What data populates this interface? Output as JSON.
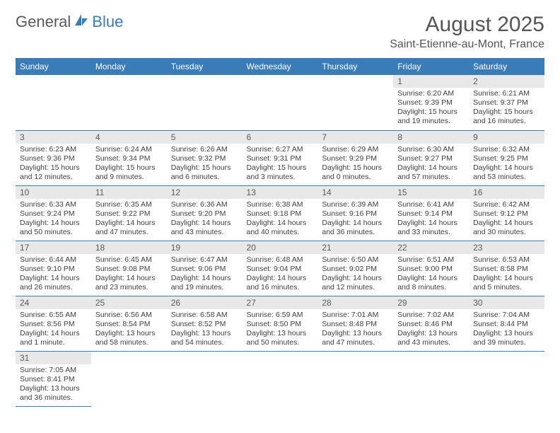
{
  "logo": {
    "general": "General",
    "blue": "Blue"
  },
  "header": {
    "month_title": "August 2025",
    "location": "Saint-Etienne-au-Mont, France"
  },
  "colors": {
    "header_bg": "#3a7cb8",
    "header_text": "#ffffff",
    "daynum_bg": "#e8e8e8",
    "text": "#404040",
    "logo_gray": "#5a5a5a",
    "logo_blue": "#3a7cb8",
    "border": "#3a7cb8",
    "page_bg": "#ffffff"
  },
  "daynames": [
    "Sunday",
    "Monday",
    "Tuesday",
    "Wednesday",
    "Thursday",
    "Friday",
    "Saturday"
  ],
  "weeks": [
    [
      null,
      null,
      null,
      null,
      null,
      {
        "n": "1",
        "sr": "Sunrise: 6:20 AM",
        "ss": "Sunset: 9:39 PM",
        "dl": "Daylight: 15 hours and 19 minutes."
      },
      {
        "n": "2",
        "sr": "Sunrise: 6:21 AM",
        "ss": "Sunset: 9:37 PM",
        "dl": "Daylight: 15 hours and 16 minutes."
      }
    ],
    [
      {
        "n": "3",
        "sr": "Sunrise: 6:23 AM",
        "ss": "Sunset: 9:36 PM",
        "dl": "Daylight: 15 hours and 12 minutes."
      },
      {
        "n": "4",
        "sr": "Sunrise: 6:24 AM",
        "ss": "Sunset: 9:34 PM",
        "dl": "Daylight: 15 hours and 9 minutes."
      },
      {
        "n": "5",
        "sr": "Sunrise: 6:26 AM",
        "ss": "Sunset: 9:32 PM",
        "dl": "Daylight: 15 hours and 6 minutes."
      },
      {
        "n": "6",
        "sr": "Sunrise: 6:27 AM",
        "ss": "Sunset: 9:31 PM",
        "dl": "Daylight: 15 hours and 3 minutes."
      },
      {
        "n": "7",
        "sr": "Sunrise: 6:29 AM",
        "ss": "Sunset: 9:29 PM",
        "dl": "Daylight: 15 hours and 0 minutes."
      },
      {
        "n": "8",
        "sr": "Sunrise: 6:30 AM",
        "ss": "Sunset: 9:27 PM",
        "dl": "Daylight: 14 hours and 57 minutes."
      },
      {
        "n": "9",
        "sr": "Sunrise: 6:32 AM",
        "ss": "Sunset: 9:25 PM",
        "dl": "Daylight: 14 hours and 53 minutes."
      }
    ],
    [
      {
        "n": "10",
        "sr": "Sunrise: 6:33 AM",
        "ss": "Sunset: 9:24 PM",
        "dl": "Daylight: 14 hours and 50 minutes."
      },
      {
        "n": "11",
        "sr": "Sunrise: 6:35 AM",
        "ss": "Sunset: 9:22 PM",
        "dl": "Daylight: 14 hours and 47 minutes."
      },
      {
        "n": "12",
        "sr": "Sunrise: 6:36 AM",
        "ss": "Sunset: 9:20 PM",
        "dl": "Daylight: 14 hours and 43 minutes."
      },
      {
        "n": "13",
        "sr": "Sunrise: 6:38 AM",
        "ss": "Sunset: 9:18 PM",
        "dl": "Daylight: 14 hours and 40 minutes."
      },
      {
        "n": "14",
        "sr": "Sunrise: 6:39 AM",
        "ss": "Sunset: 9:16 PM",
        "dl": "Daylight: 14 hours and 36 minutes."
      },
      {
        "n": "15",
        "sr": "Sunrise: 6:41 AM",
        "ss": "Sunset: 9:14 PM",
        "dl": "Daylight: 14 hours and 33 minutes."
      },
      {
        "n": "16",
        "sr": "Sunrise: 6:42 AM",
        "ss": "Sunset: 9:12 PM",
        "dl": "Daylight: 14 hours and 30 minutes."
      }
    ],
    [
      {
        "n": "17",
        "sr": "Sunrise: 6:44 AM",
        "ss": "Sunset: 9:10 PM",
        "dl": "Daylight: 14 hours and 26 minutes."
      },
      {
        "n": "18",
        "sr": "Sunrise: 6:45 AM",
        "ss": "Sunset: 9:08 PM",
        "dl": "Daylight: 14 hours and 23 minutes."
      },
      {
        "n": "19",
        "sr": "Sunrise: 6:47 AM",
        "ss": "Sunset: 9:06 PM",
        "dl": "Daylight: 14 hours and 19 minutes."
      },
      {
        "n": "20",
        "sr": "Sunrise: 6:48 AM",
        "ss": "Sunset: 9:04 PM",
        "dl": "Daylight: 14 hours and 16 minutes."
      },
      {
        "n": "21",
        "sr": "Sunrise: 6:50 AM",
        "ss": "Sunset: 9:02 PM",
        "dl": "Daylight: 14 hours and 12 minutes."
      },
      {
        "n": "22",
        "sr": "Sunrise: 6:51 AM",
        "ss": "Sunset: 9:00 PM",
        "dl": "Daylight: 14 hours and 8 minutes."
      },
      {
        "n": "23",
        "sr": "Sunrise: 6:53 AM",
        "ss": "Sunset: 8:58 PM",
        "dl": "Daylight: 14 hours and 5 minutes."
      }
    ],
    [
      {
        "n": "24",
        "sr": "Sunrise: 6:55 AM",
        "ss": "Sunset: 8:56 PM",
        "dl": "Daylight: 14 hours and 1 minute."
      },
      {
        "n": "25",
        "sr": "Sunrise: 6:56 AM",
        "ss": "Sunset: 8:54 PM",
        "dl": "Daylight: 13 hours and 58 minutes."
      },
      {
        "n": "26",
        "sr": "Sunrise: 6:58 AM",
        "ss": "Sunset: 8:52 PM",
        "dl": "Daylight: 13 hours and 54 minutes."
      },
      {
        "n": "27",
        "sr": "Sunrise: 6:59 AM",
        "ss": "Sunset: 8:50 PM",
        "dl": "Daylight: 13 hours and 50 minutes."
      },
      {
        "n": "28",
        "sr": "Sunrise: 7:01 AM",
        "ss": "Sunset: 8:48 PM",
        "dl": "Daylight: 13 hours and 47 minutes."
      },
      {
        "n": "29",
        "sr": "Sunrise: 7:02 AM",
        "ss": "Sunset: 8:46 PM",
        "dl": "Daylight: 13 hours and 43 minutes."
      },
      {
        "n": "30",
        "sr": "Sunrise: 7:04 AM",
        "ss": "Sunset: 8:44 PM",
        "dl": "Daylight: 13 hours and 39 minutes."
      }
    ],
    [
      {
        "n": "31",
        "sr": "Sunrise: 7:05 AM",
        "ss": "Sunset: 8:41 PM",
        "dl": "Daylight: 13 hours and 36 minutes."
      },
      null,
      null,
      null,
      null,
      null,
      null
    ]
  ]
}
